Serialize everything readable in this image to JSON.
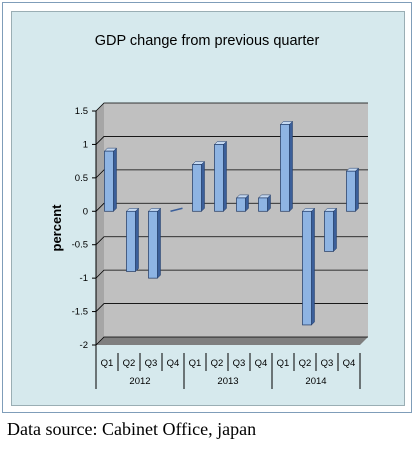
{
  "chart_data": {
    "type": "bar",
    "title": "GDP change from previous quarter",
    "ylabel": "percent",
    "xlabel": "",
    "ylim": [
      -2,
      1.5
    ],
    "yticks": [
      1.5,
      1,
      0.5,
      0,
      -0.5,
      -1,
      -1.5,
      -2
    ],
    "categories": [
      "Q1",
      "Q2",
      "Q3",
      "Q4",
      "Q1",
      "Q2",
      "Q3",
      "Q4",
      "Q1",
      "Q2",
      "Q3",
      "Q4"
    ],
    "groups": [
      {
        "label": "2012",
        "count": 4
      },
      {
        "label": "2013",
        "count": 4
      },
      {
        "label": "2014",
        "count": 4
      }
    ],
    "values": [
      0.9,
      -0.9,
      -1.0,
      0.0,
      0.7,
      1.0,
      0.2,
      0.2,
      1.3,
      -1.7,
      -0.6,
      0.6
    ],
    "grid": true,
    "bar_color": "#8eb4e3",
    "bar_side_color": "#3b5f9a",
    "wall_color": "#c0c0c0",
    "floor_color": "#7f7f7f"
  },
  "source_text": "Data source: Cabinet Office, japan"
}
